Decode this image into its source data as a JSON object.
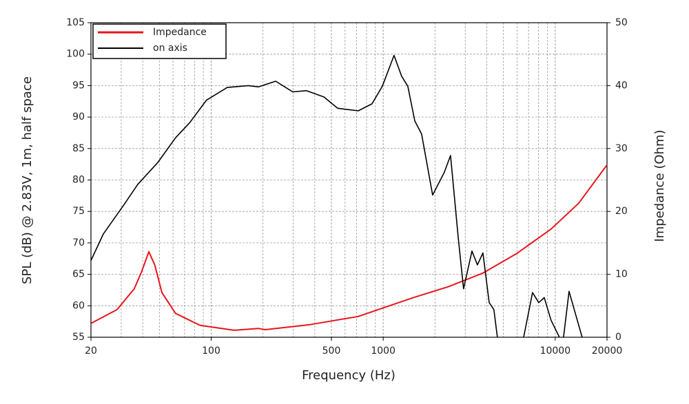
{
  "chart_data": {
    "type": "line",
    "xlabel": "Frequency (Hz)",
    "ylabel": "SPL (dB) @ 2.83V, 1m, half space",
    "y2label": "Impedance (Ohm)",
    "xscale": "log",
    "xlim": [
      20,
      20000
    ],
    "xticks": [
      20,
      100,
      500,
      1000,
      10000,
      20000
    ],
    "ylim": [
      55,
      105
    ],
    "yticks": [
      55,
      60,
      65,
      70,
      75,
      80,
      85,
      90,
      95,
      100,
      105
    ],
    "y2lim": [
      0,
      50
    ],
    "y2ticks": [
      0,
      10,
      20,
      30,
      40,
      50
    ],
    "grid": true,
    "minor_grid": true,
    "legend": "upper left",
    "series": [
      {
        "name": "Impedance",
        "color": "#e8141b",
        "axis": "y2",
        "x": [
          20,
          28.4,
          35.7,
          39.4,
          43.4,
          47,
          51.7,
          62,
          86,
          136,
          188,
          206,
          375,
          716,
          1035,
          1497,
          2370,
          3800,
          5970,
          9460,
          13690,
          20000
        ],
        "values": [
          2.2,
          4.4,
          7.7,
          10.4,
          13.6,
          11.5,
          7.1,
          3.8,
          1.9,
          1.1,
          1.4,
          1.2,
          2.0,
          3.3,
          4.8,
          6.3,
          8.0,
          10.2,
          13.3,
          17.2,
          21.3,
          27.4
        ]
      },
      {
        "name": "on axis",
        "color": "#000000",
        "x": [
          20,
          23.6,
          31,
          37.4,
          49,
          62,
          75,
          94,
          124,
          164,
          188,
          237,
          298,
          358,
          452,
          543,
          716,
          861,
          988,
          1156,
          1280,
          1390,
          1526,
          1672,
          1938,
          2265,
          2462,
          2728,
          2932,
          3280,
          3530,
          3800,
          4130,
          4400,
          4610,
          5500,
          6550,
          7380,
          8020,
          8630,
          9460,
          10570,
          10900,
          11180,
          12030,
          14330
        ],
        "values": [
          67.2,
          71.4,
          76,
          79.3,
          82.8,
          86.7,
          89.1,
          92.7,
          94.7,
          95,
          94.8,
          95.7,
          94,
          94.2,
          93.2,
          91.4,
          91,
          92.1,
          94.9,
          99.8,
          96.5,
          94.9,
          89.4,
          87.3,
          77.6,
          81.2,
          83.9,
          70.9,
          62.7,
          68.7,
          66.5,
          68.4,
          60.5,
          59.4,
          55,
          null,
          55,
          62.1,
          60.5,
          61.3,
          57.7,
          55,
          null,
          55,
          62.3,
          55
        ]
      }
    ]
  }
}
